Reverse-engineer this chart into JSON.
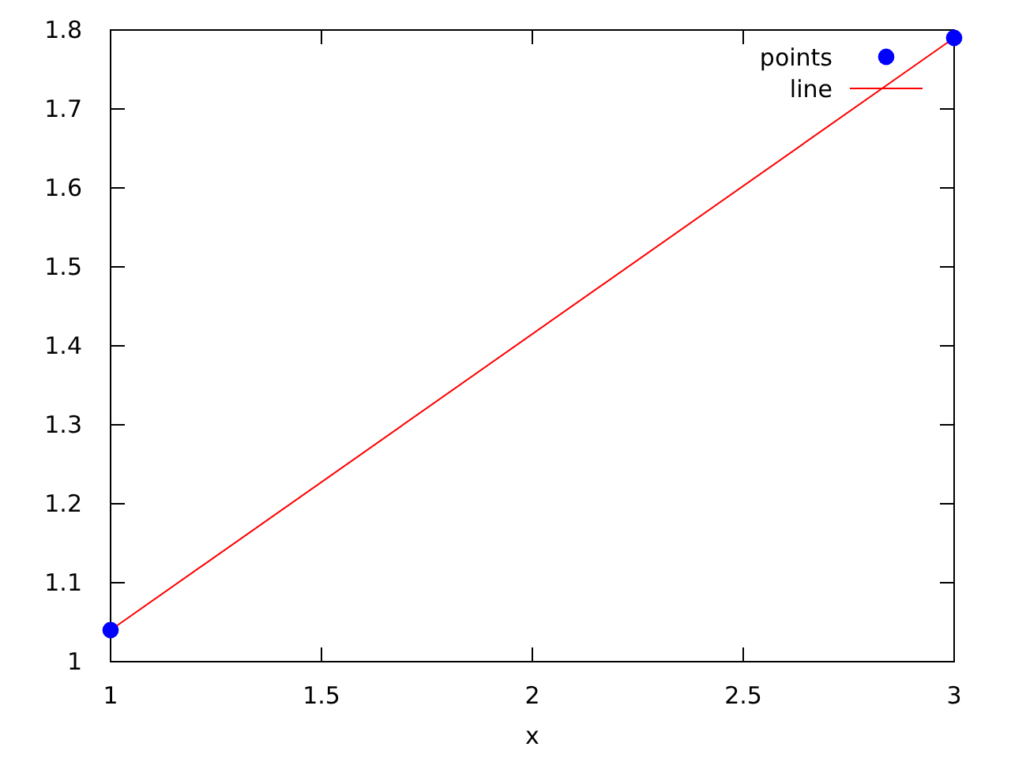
{
  "chart_data": {
    "type": "scatter",
    "xlabel": "x",
    "xlim": [
      1,
      3
    ],
    "xticks": [
      1,
      1.5,
      2,
      2.5,
      3
    ],
    "ylim": [
      1,
      1.8
    ],
    "yticks": [
      1,
      1.1,
      1.2,
      1.3,
      1.4,
      1.5,
      1.6,
      1.7,
      1.8
    ],
    "legend": "top right",
    "x": [
      1,
      3
    ],
    "series": [
      {
        "name": "points",
        "color": "#0000ff",
        "marker": "circle",
        "values": [
          1.04,
          1.79
        ]
      },
      {
        "type": "line",
        "name": "line",
        "color": "#ff0000",
        "marker": "none",
        "values": [
          1.04,
          1.79
        ]
      }
    ]
  }
}
